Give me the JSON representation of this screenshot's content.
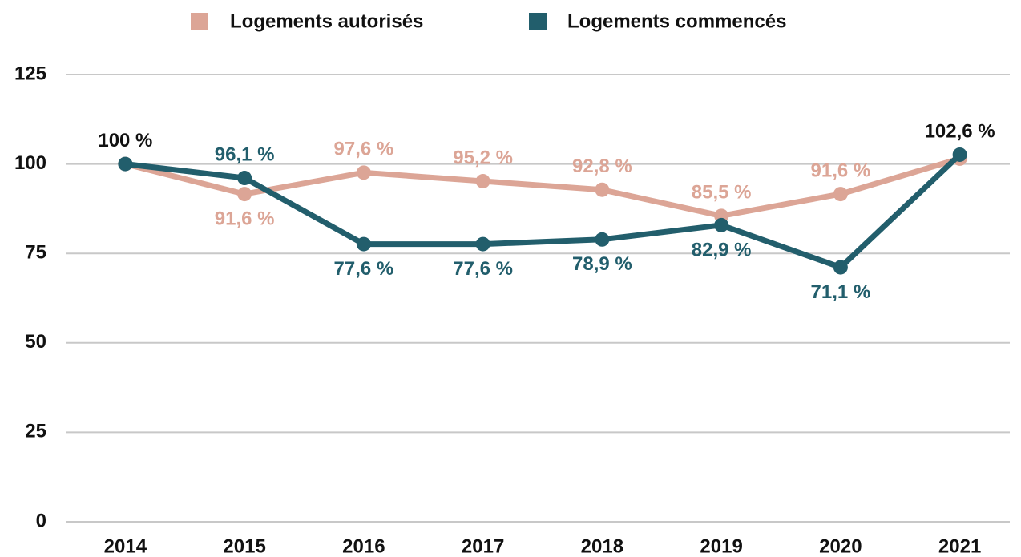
{
  "chart_data": {
    "type": "line",
    "categories": [
      "2014",
      "2015",
      "2016",
      "2017",
      "2018",
      "2019",
      "2020",
      "2021"
    ],
    "series": [
      {
        "name": "Logements autorisés",
        "color": "#dca596",
        "values": [
          100,
          91.6,
          97.6,
          95.2,
          92.8,
          85.5,
          91.6,
          101.5
        ],
        "value_labels": [
          null,
          "91,6 %",
          "97,6 %",
          "95,2 %",
          "92,8 %",
          "85,5 %",
          "91,6 %",
          null
        ],
        "label_colors": [
          null,
          "#dca596",
          "#dca596",
          "#dca596",
          "#dca596",
          "#dca596",
          "#dca596",
          null
        ]
      },
      {
        "name": "Logements commencés",
        "color": "#225e6c",
        "values": [
          100,
          96.1,
          77.6,
          77.6,
          78.9,
          82.9,
          71.1,
          102.6
        ],
        "value_labels": [
          "100 %",
          "96,1 %",
          "77,6 %",
          "77,6 %",
          "78,9 %",
          "82,9 %",
          "71,1 %",
          "102,6 %"
        ],
        "label_colors": [
          "#111111",
          "#225e6c",
          "#225e6c",
          "#225e6c",
          "#225e6c",
          "#225e6c",
          "#225e6c",
          "#111111"
        ]
      }
    ],
    "ylim": [
      0,
      125
    ],
    "yticks": [
      0,
      25,
      50,
      75,
      100,
      125
    ],
    "grid": true,
    "legend": "top"
  }
}
